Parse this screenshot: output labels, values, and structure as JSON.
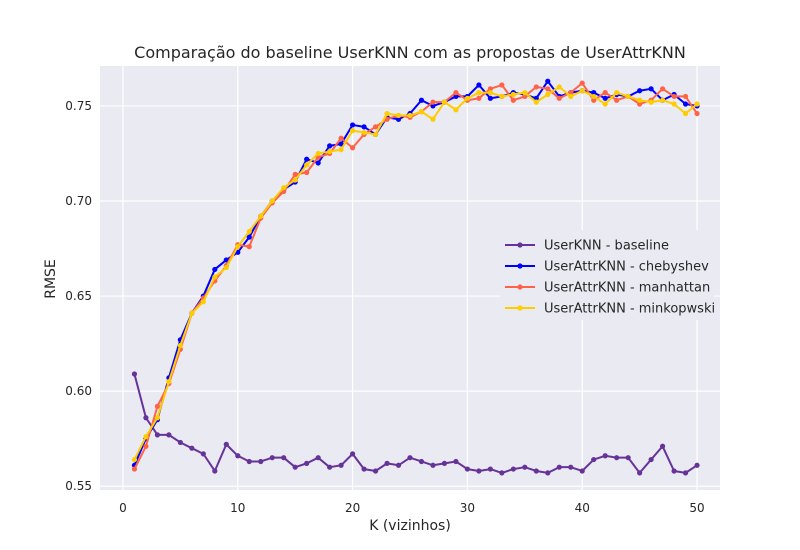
{
  "chart_data": {
    "type": "line",
    "title": "Comparação do baseline UserKNN com as propostas de UserAttrKNN",
    "xlabel": "K (vizinhos)",
    "ylabel": "RMSE",
    "xlim": [
      -2,
      52
    ],
    "ylim": [
      0.548,
      0.771
    ],
    "xticks": [
      0,
      10,
      20,
      30,
      40,
      50
    ],
    "yticks": [
      0.55,
      0.6,
      0.65,
      0.7,
      0.75
    ],
    "ytick_labels": [
      "0.55",
      "0.60",
      "0.65",
      "0.70",
      "0.75"
    ],
    "grid": true,
    "legend_position": "center-right",
    "x": [
      1,
      2,
      3,
      4,
      5,
      6,
      7,
      8,
      9,
      10,
      11,
      12,
      13,
      14,
      15,
      16,
      17,
      18,
      19,
      20,
      21,
      22,
      23,
      24,
      25,
      26,
      27,
      28,
      29,
      30,
      31,
      32,
      33,
      34,
      35,
      36,
      37,
      38,
      39,
      40,
      41,
      42,
      43,
      44,
      45,
      46,
      47,
      48,
      49,
      50
    ],
    "series": [
      {
        "name": "UserKNN - baseline",
        "color": "#663399",
        "values": [
          0.609,
          0.586,
          0.577,
          0.577,
          0.573,
          0.57,
          0.567,
          0.558,
          0.572,
          0.566,
          0.563,
          0.563,
          0.565,
          0.565,
          0.56,
          0.562,
          0.565,
          0.56,
          0.561,
          0.567,
          0.559,
          0.558,
          0.562,
          0.561,
          0.565,
          0.563,
          0.561,
          0.562,
          0.563,
          0.559,
          0.558,
          0.559,
          0.557,
          0.559,
          0.56,
          0.558,
          0.557,
          0.56,
          0.56,
          0.558,
          0.564,
          0.566,
          0.565,
          0.565,
          0.557,
          0.564,
          0.571,
          0.558,
          0.557,
          0.561
        ]
      },
      {
        "name": "UserAttrKNN - chebyshev",
        "color": "#0000ff",
        "values": [
          0.561,
          0.575,
          0.585,
          0.607,
          0.627,
          0.641,
          0.65,
          0.664,
          0.669,
          0.673,
          0.681,
          0.692,
          0.7,
          0.706,
          0.71,
          0.722,
          0.72,
          0.729,
          0.73,
          0.74,
          0.739,
          0.735,
          0.744,
          0.743,
          0.746,
          0.753,
          0.75,
          0.752,
          0.755,
          0.755,
          0.761,
          0.754,
          0.755,
          0.757,
          0.756,
          0.754,
          0.763,
          0.755,
          0.757,
          0.758,
          0.757,
          0.754,
          0.756,
          0.755,
          0.758,
          0.759,
          0.753,
          0.756,
          0.751,
          0.75
        ]
      },
      {
        "name": "UserAttrKNN - manhattan",
        "color": "#ff6347",
        "values": [
          0.559,
          0.571,
          0.592,
          0.604,
          0.622,
          0.641,
          0.649,
          0.658,
          0.666,
          0.677,
          0.676,
          0.691,
          0.699,
          0.705,
          0.714,
          0.715,
          0.723,
          0.725,
          0.733,
          0.728,
          0.735,
          0.739,
          0.743,
          0.745,
          0.744,
          0.747,
          0.752,
          0.752,
          0.757,
          0.753,
          0.754,
          0.759,
          0.761,
          0.753,
          0.755,
          0.76,
          0.759,
          0.754,
          0.757,
          0.762,
          0.753,
          0.757,
          0.753,
          0.755,
          0.751,
          0.753,
          0.759,
          0.755,
          0.755,
          0.746
        ]
      },
      {
        "name": "UserAttrKNN - minkopwski",
        "color": "#ffcc00",
        "values": [
          0.564,
          0.576,
          0.586,
          0.605,
          0.624,
          0.641,
          0.647,
          0.66,
          0.665,
          0.676,
          0.684,
          0.692,
          0.7,
          0.707,
          0.711,
          0.719,
          0.725,
          0.726,
          0.727,
          0.737,
          0.736,
          0.735,
          0.746,
          0.745,
          0.745,
          0.747,
          0.743,
          0.752,
          0.748,
          0.754,
          0.757,
          0.757,
          0.755,
          0.756,
          0.757,
          0.752,
          0.756,
          0.76,
          0.755,
          0.758,
          0.755,
          0.751,
          0.757,
          0.755,
          0.753,
          0.752,
          0.753,
          0.751,
          0.746,
          0.751
        ]
      }
    ]
  }
}
